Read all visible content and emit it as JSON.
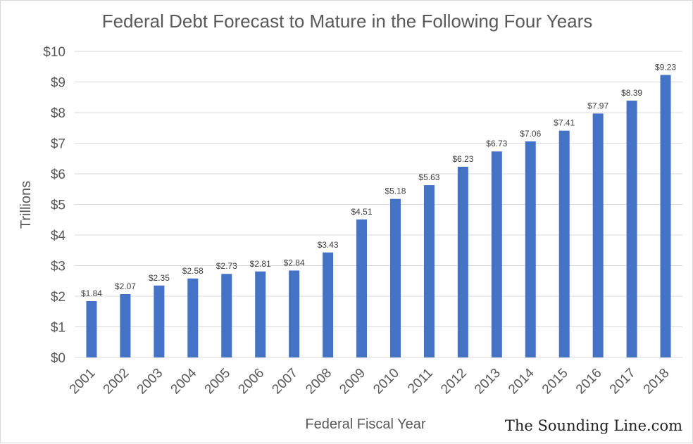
{
  "chart_data": {
    "type": "bar",
    "title": "Federal Debt Forecast to Mature in the Following Four Years",
    "xlabel": "Federal Fiscal Year",
    "ylabel": "Trillions",
    "categories": [
      "2001",
      "2002",
      "2003",
      "2004",
      "2005",
      "2006",
      "2007",
      "2008",
      "2009",
      "2010",
      "2011",
      "2012",
      "2013",
      "2014",
      "2015",
      "2016",
      "2017",
      "2018"
    ],
    "values": [
      1.84,
      2.07,
      2.35,
      2.58,
      2.73,
      2.81,
      2.84,
      3.43,
      4.51,
      5.18,
      5.63,
      6.23,
      6.73,
      7.06,
      7.41,
      7.97,
      8.39,
      9.23
    ],
    "value_labels": [
      "$1.84",
      "$2.07",
      "$2.35",
      "$2.58",
      "$2.73",
      "$2.81",
      "$2.84",
      "$3.43",
      "$4.51",
      "$5.18",
      "$5.63",
      "$6.23",
      "$6.73",
      "$7.06",
      "$7.41",
      "$7.97",
      "$8.39",
      "$9.23"
    ],
    "ylim": [
      0,
      10
    ],
    "yticks": [
      0,
      1,
      2,
      3,
      4,
      5,
      6,
      7,
      8,
      9,
      10
    ],
    "ytick_labels": [
      "$0",
      "$1",
      "$2",
      "$3",
      "$4",
      "$5",
      "$6",
      "$7",
      "$8",
      "$9",
      "$10"
    ],
    "grid": true,
    "bar_color": "#4472c4",
    "grid_color": "#d9d9d9"
  },
  "watermark": "The Sounding Line.com"
}
